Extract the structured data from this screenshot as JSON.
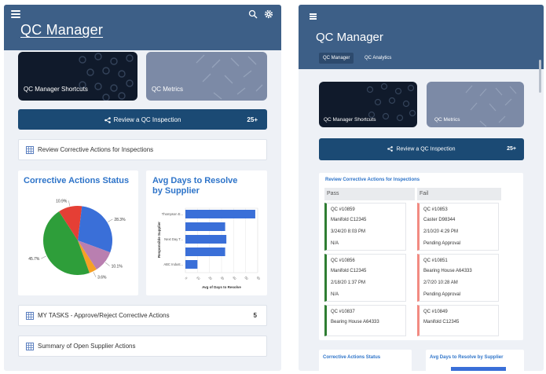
{
  "left": {
    "app_title": "QC Manager",
    "tiles": {
      "shortcuts": "QC Manager Shortcuts",
      "metrics": "QC Metrics"
    },
    "review_button": {
      "label": "Review a QC Inspection",
      "count": "25+"
    },
    "review_corrective": "Review Corrective Actions for Inspections",
    "status_chart": {
      "title": "Corrective Actions Status",
      "slices": [
        {
          "value": 28.3,
          "label": "28.3%",
          "color": "#3a6fd8"
        },
        {
          "value": 10.1,
          "label": "10.1%",
          "color": "#b97fb0"
        },
        {
          "value": 3.6,
          "label": "3.6%",
          "color": "#f5a025"
        },
        {
          "value": 45.7,
          "label": "45.7%",
          "color": "#2e9e3a"
        },
        {
          "value": 10.9,
          "label": "10.9%",
          "color": "#e53f35"
        }
      ]
    },
    "days_chart": {
      "title_line1": "Avg Days to Resolve",
      "title_line2": "by Supplier",
      "ylabel": "Responsible Supplier",
      "xlabel": "Avg of Days to Resolve",
      "categories": [
        "Thompson E...",
        "",
        "Next Day T...",
        "",
        "ABC Indust..."
      ],
      "ticks": [
        "0",
        "10",
        "20",
        "30",
        "40",
        "50",
        "60"
      ]
    },
    "my_tasks": {
      "label": "MY TASKS - Approve/Reject Corrective Actions",
      "count": "5"
    },
    "summary": "Summary of Open Supplier Actions"
  },
  "right": {
    "app_title": "QC Manager",
    "tabs": [
      "QC Manager",
      "QC Analytics"
    ],
    "tiles": {
      "shortcuts": "QC Manager Shortcuts",
      "metrics": "QC Metrics"
    },
    "review_button": {
      "label": "Review a QC Inspection",
      "count": "25+"
    },
    "review_card": {
      "title": "Review Corrective Actions for Inspections",
      "pass_header": "Pass",
      "fail_header": "Fail",
      "pass": [
        {
          "id": "QC #10859",
          "item": "Manifold C12345",
          "date": "3/24/20 8:03 PM",
          "status": "N/A"
        },
        {
          "id": "QC #10856",
          "item": "Manifold C12345",
          "date": "2/18/20 1:37 PM",
          "status": "N/A"
        },
        {
          "id": "QC #10837",
          "item": "Bearing House A64333",
          "date": "",
          "status": ""
        }
      ],
      "fail": [
        {
          "id": "QC #10853",
          "item": "Caster D98344",
          "date": "2/10/20 4:29 PM",
          "status": "Pending Approval"
        },
        {
          "id": "QC #10851",
          "item": "Bearing House A64333",
          "date": "2/7/20 10:28 AM",
          "status": "Pending Approval"
        },
        {
          "id": "QC #10849",
          "item": "Manifold C12345",
          "date": "",
          "status": ""
        }
      ]
    },
    "bottom": {
      "status": "Corrective Actions Status",
      "days": "Avg Days to Resolve by Supplier"
    }
  }
}
